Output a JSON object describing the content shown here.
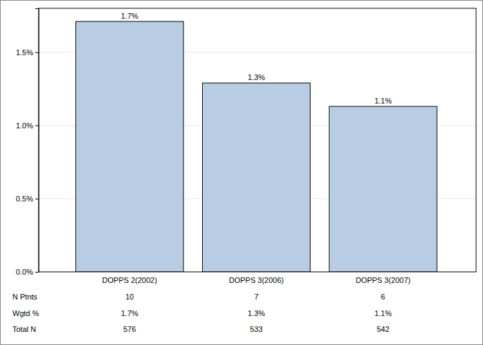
{
  "chart_data": {
    "type": "bar",
    "categories": [
      "DOPPS 2(2002)",
      "DOPPS 3(2006)",
      "DOPPS 3(2007)"
    ],
    "values": [
      1.71,
      1.29,
      1.13
    ],
    "value_labels": [
      "1.7%",
      "1.3%",
      "1.1%"
    ],
    "data_labels": true,
    "color": "#b8cce4",
    "ylim": [
      0,
      1.8
    ],
    "yticks": [
      {
        "value": 0,
        "label": "0.0%"
      },
      {
        "value": 0.5,
        "label": "0.5%"
      },
      {
        "value": 1,
        "label": "1.0%"
      },
      {
        "value": 1.5,
        "label": "1.5%"
      }
    ],
    "grid": true,
    "table": {
      "rows": [
        {
          "label": "N Ptnts",
          "values": [
            10,
            7,
            6
          ]
        },
        {
          "label": "Wgtd %",
          "values": [
            "1.7%",
            "1.3%",
            "1.1%"
          ]
        },
        {
          "label": "Total N",
          "values": [
            576,
            533,
            542
          ]
        }
      ]
    }
  }
}
